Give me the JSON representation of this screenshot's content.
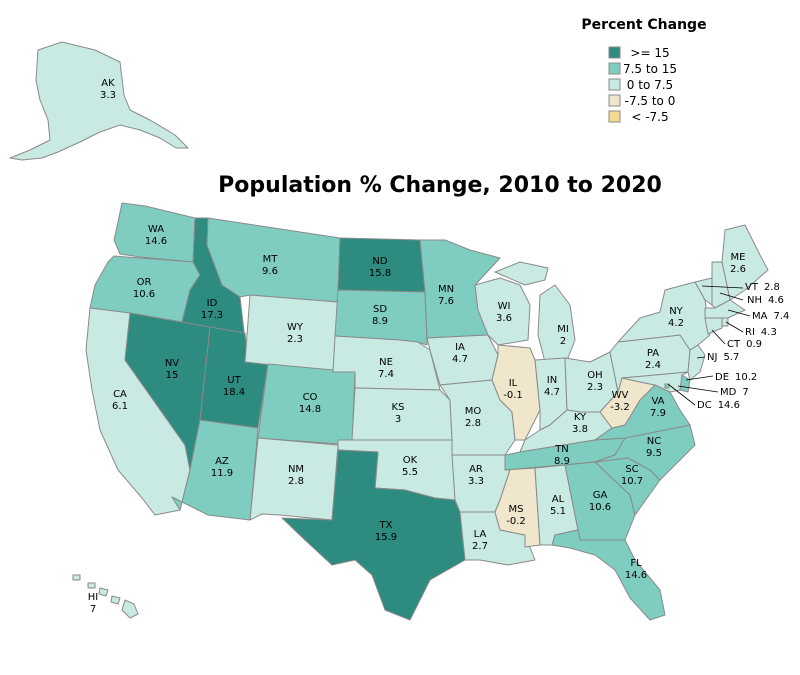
{
  "title": "Population % Change, 2010 to 2020",
  "legend": {
    "title": "Percent Change",
    "items": [
      {
        "key": "c1",
        "label": ">= 15",
        "color": "#2e8b80"
      },
      {
        "key": "c2",
        "label": "7.5 to 15",
        "color": "#7ecdc0"
      },
      {
        "key": "c3",
        "label": "0 to 7.5",
        "color": "#c8eae3"
      },
      {
        "key": "c4",
        "label": "-7.5 to 0",
        "color": "#efe6cc"
      },
      {
        "key": "c5",
        "label": "< -7.5",
        "color": "#f5d98c"
      }
    ]
  },
  "states": [
    {
      "abbr": "AK",
      "value": "3.3",
      "cls": "c3"
    },
    {
      "abbr": "HI",
      "value": "7",
      "cls": "c3"
    },
    {
      "abbr": "WA",
      "value": "14.6",
      "cls": "c2"
    },
    {
      "abbr": "OR",
      "value": "10.6",
      "cls": "c2"
    },
    {
      "abbr": "CA",
      "value": "6.1",
      "cls": "c3"
    },
    {
      "abbr": "ID",
      "value": "17.3",
      "cls": "c1"
    },
    {
      "abbr": "NV",
      "value": "15",
      "cls": "c1"
    },
    {
      "abbr": "UT",
      "value": "18.4",
      "cls": "c1"
    },
    {
      "abbr": "AZ",
      "value": "11.9",
      "cls": "c2"
    },
    {
      "abbr": "MT",
      "value": "9.6",
      "cls": "c2"
    },
    {
      "abbr": "WY",
      "value": "2.3",
      "cls": "c3"
    },
    {
      "abbr": "CO",
      "value": "14.8",
      "cls": "c2"
    },
    {
      "abbr": "NM",
      "value": "2.8",
      "cls": "c3"
    },
    {
      "abbr": "ND",
      "value": "15.8",
      "cls": "c1"
    },
    {
      "abbr": "SD",
      "value": "8.9",
      "cls": "c2"
    },
    {
      "abbr": "NE",
      "value": "7.4",
      "cls": "c3"
    },
    {
      "abbr": "KS",
      "value": "3",
      "cls": "c3"
    },
    {
      "abbr": "OK",
      "value": "5.5",
      "cls": "c3"
    },
    {
      "abbr": "TX",
      "value": "15.9",
      "cls": "c1"
    },
    {
      "abbr": "MN",
      "value": "7.6",
      "cls": "c2"
    },
    {
      "abbr": "IA",
      "value": "4.7",
      "cls": "c3"
    },
    {
      "abbr": "MO",
      "value": "2.8",
      "cls": "c3"
    },
    {
      "abbr": "AR",
      "value": "3.3",
      "cls": "c3"
    },
    {
      "abbr": "LA",
      "value": "2.7",
      "cls": "c3"
    },
    {
      "abbr": "WI",
      "value": "3.6",
      "cls": "c3"
    },
    {
      "abbr": "IL",
      "value": "-0.1",
      "cls": "c4"
    },
    {
      "abbr": "MI",
      "value": "2",
      "cls": "c3"
    },
    {
      "abbr": "IN",
      "value": "4.7",
      "cls": "c3"
    },
    {
      "abbr": "OH",
      "value": "2.3",
      "cls": "c3"
    },
    {
      "abbr": "KY",
      "value": "3.8",
      "cls": "c3"
    },
    {
      "abbr": "TN",
      "value": "8.9",
      "cls": "c2"
    },
    {
      "abbr": "MS",
      "value": "-0.2",
      "cls": "c4"
    },
    {
      "abbr": "AL",
      "value": "5.1",
      "cls": "c3"
    },
    {
      "abbr": "GA",
      "value": "10.6",
      "cls": "c2"
    },
    {
      "abbr": "FL",
      "value": "14.6",
      "cls": "c2"
    },
    {
      "abbr": "SC",
      "value": "10.7",
      "cls": "c2"
    },
    {
      "abbr": "NC",
      "value": "9.5",
      "cls": "c2"
    },
    {
      "abbr": "VA",
      "value": "7.9",
      "cls": "c2"
    },
    {
      "abbr": "WV",
      "value": "-3.2",
      "cls": "c4"
    },
    {
      "abbr": "PA",
      "value": "2.4",
      "cls": "c3"
    },
    {
      "abbr": "NY",
      "value": "4.2",
      "cls": "c3"
    },
    {
      "abbr": "ME",
      "value": "2.6",
      "cls": "c3"
    },
    {
      "abbr": "VT",
      "value": "2.8",
      "cls": "c3"
    },
    {
      "abbr": "NH",
      "value": "4.6",
      "cls": "c3"
    },
    {
      "abbr": "MA",
      "value": "7.4",
      "cls": "c3"
    },
    {
      "abbr": "RI",
      "value": "4.3",
      "cls": "c3"
    },
    {
      "abbr": "CT",
      "value": "0.9",
      "cls": "c3"
    },
    {
      "abbr": "NJ",
      "value": "5.7",
      "cls": "c3"
    },
    {
      "abbr": "DE",
      "value": "10.2",
      "cls": "c2"
    },
    {
      "abbr": "MD",
      "value": "7",
      "cls": "c3"
    },
    {
      "abbr": "DC",
      "value": "14.6",
      "cls": "c2"
    }
  ]
}
